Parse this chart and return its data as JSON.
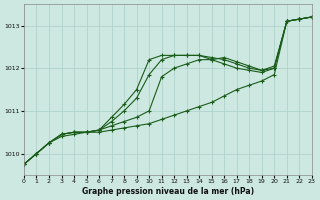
{
  "bg_color": "#cce8e0",
  "line_color": "#1a5c1a",
  "grid_color": "#aacfc8",
  "xlabel": "Graphe pression niveau de la mer (hPa)",
  "ylim": [
    1009.5,
    1013.5
  ],
  "xlim": [
    0,
    23
  ],
  "yticks": [
    1010,
    1011,
    1012,
    1013
  ],
  "xticks": [
    0,
    1,
    2,
    3,
    4,
    5,
    6,
    7,
    8,
    9,
    10,
    11,
    12,
    13,
    14,
    15,
    16,
    17,
    18,
    19,
    20,
    21,
    22,
    23
  ],
  "series": [
    [
      1009.75,
      1010.0,
      1010.25,
      1010.45,
      1010.5,
      1010.5,
      1010.55,
      1010.65,
      1010.75,
      1010.85,
      1011.0,
      1011.8,
      1012.0,
      1012.1,
      1012.2,
      1012.2,
      1012.25,
      1012.15,
      1012.05,
      1011.95,
      1012.05,
      1013.1,
      1013.15,
      1013.2
    ],
    [
      1009.75,
      1010.0,
      1010.25,
      1010.4,
      1010.45,
      1010.5,
      1010.5,
      1010.55,
      1010.6,
      1010.65,
      1010.7,
      1010.8,
      1010.9,
      1011.0,
      1011.1,
      1011.2,
      1011.35,
      1011.5,
      1011.6,
      1011.7,
      1011.85,
      1013.1,
      1013.15,
      1013.2
    ],
    [
      1009.75,
      1010.0,
      1010.25,
      1010.45,
      1010.5,
      1010.5,
      1010.55,
      1010.75,
      1011.0,
      1011.3,
      1011.85,
      1012.2,
      1012.3,
      1012.3,
      1012.3,
      1012.2,
      1012.1,
      1012.0,
      1011.95,
      1011.9,
      1012.0,
      1013.1,
      1013.15,
      1013.2
    ],
    [
      1009.75,
      1010.0,
      1010.25,
      1010.45,
      1010.5,
      1010.5,
      1010.55,
      1010.85,
      1011.15,
      1011.5,
      1012.2,
      1012.3,
      1012.3,
      1012.3,
      1012.3,
      1012.25,
      1012.2,
      1012.1,
      1012.0,
      1011.95,
      1012.0,
      1013.1,
      1013.15,
      1013.2
    ]
  ]
}
